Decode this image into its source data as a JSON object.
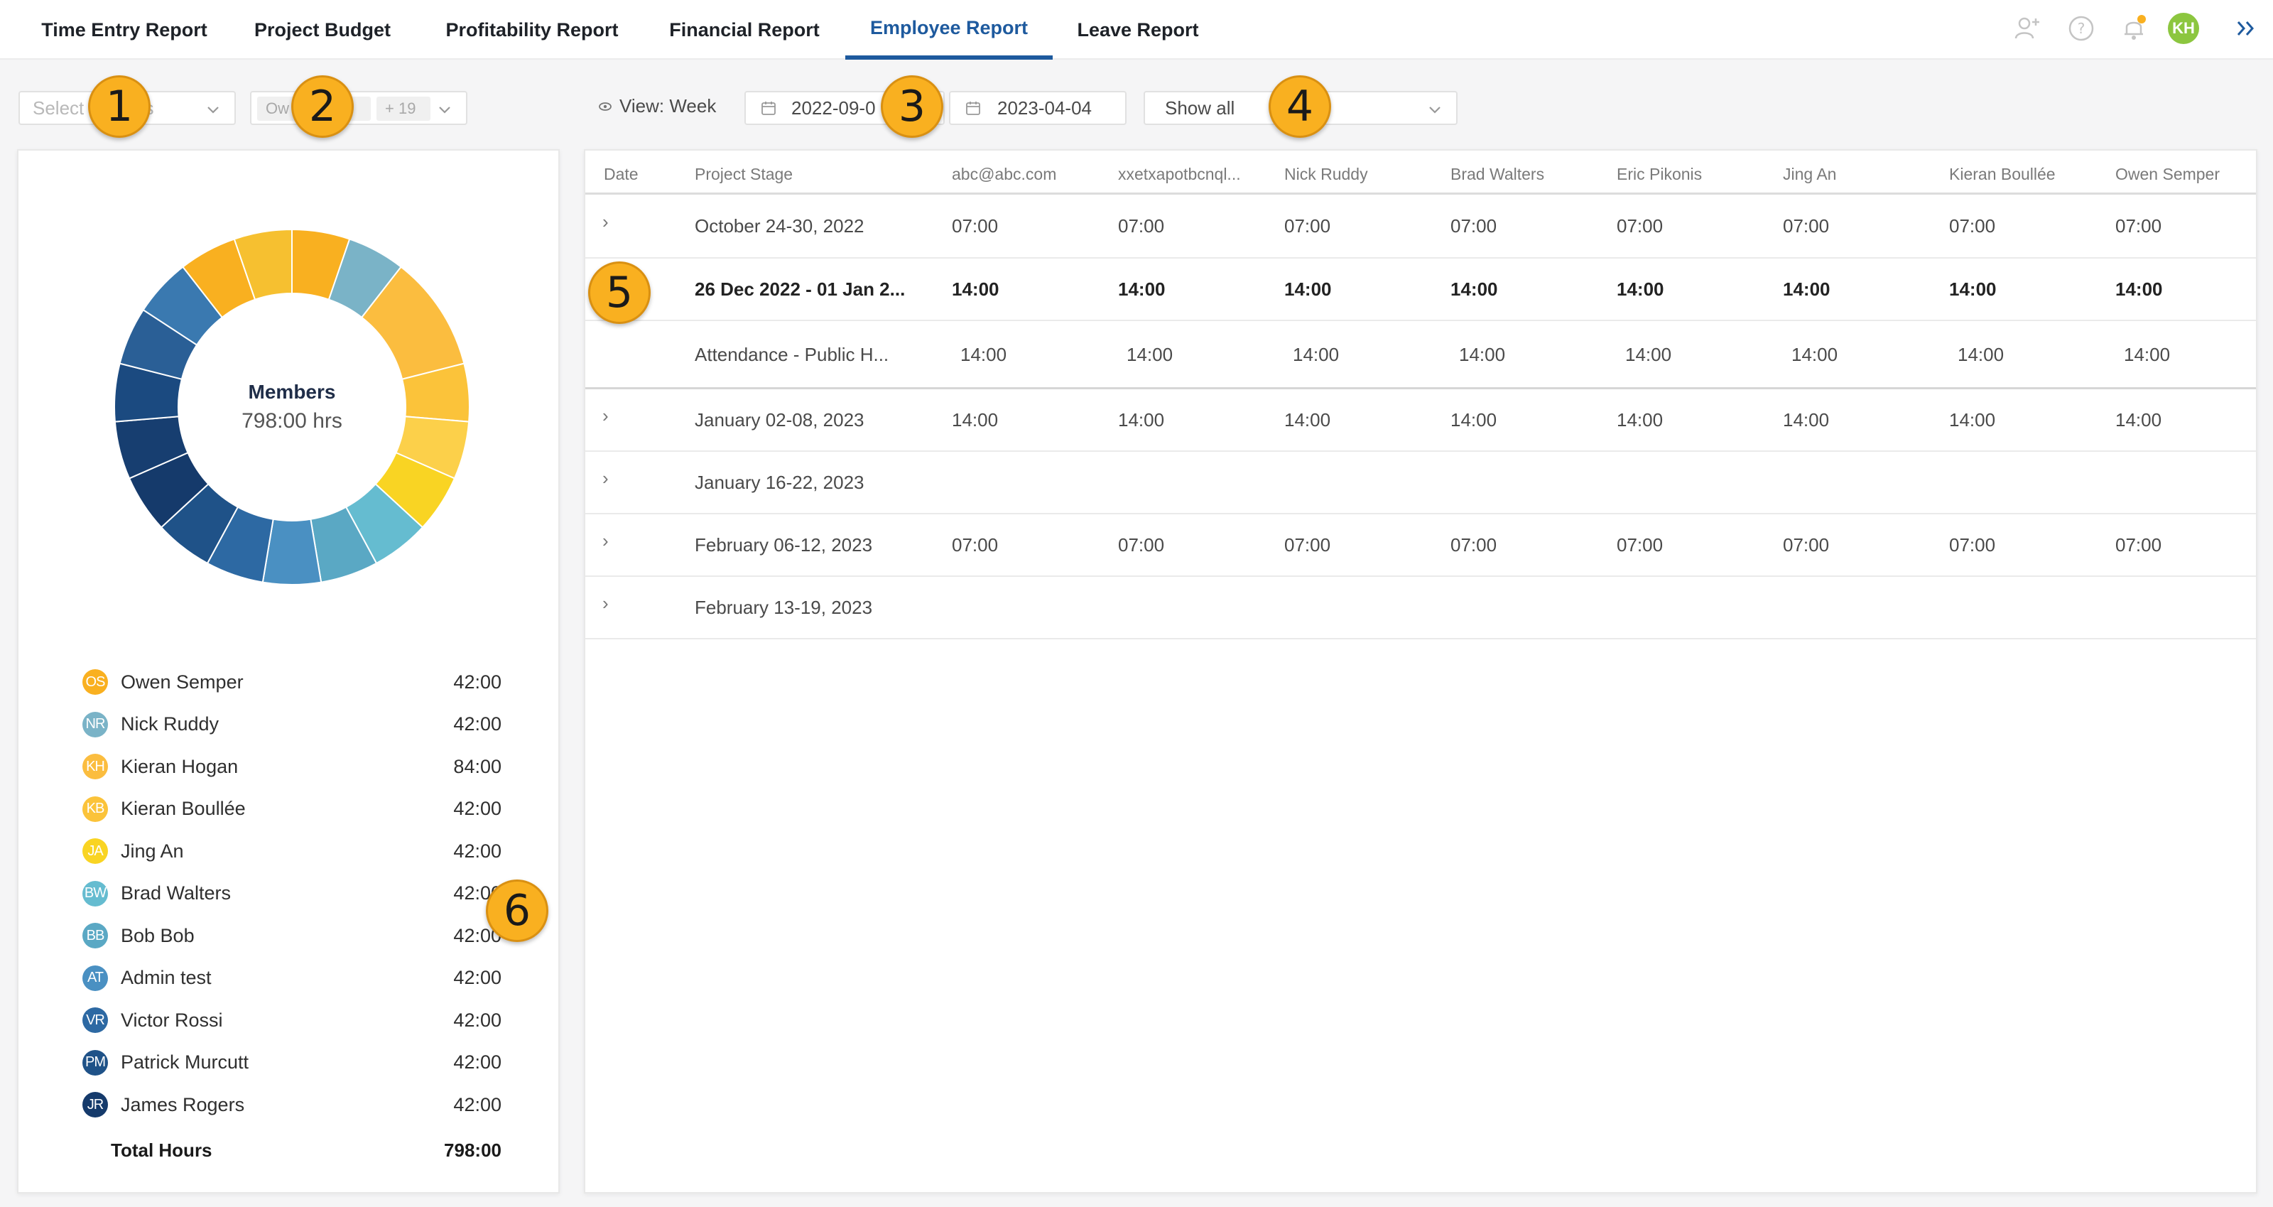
{
  "nav": {
    "tabs": [
      {
        "label": "Time Entry Report"
      },
      {
        "label": "Project Budget"
      },
      {
        "label": "Profitability Report"
      },
      {
        "label": "Financial Report"
      },
      {
        "label": "Employee Report"
      },
      {
        "label": "Leave Report"
      }
    ],
    "active_tab": "Employee Report",
    "user_initials": "KH",
    "colors": {
      "active": "#1e5a9e",
      "avatar": "#8cc63f",
      "notification_dot": "#f9b020"
    }
  },
  "filters": {
    "projects_placeholder": "Select projects",
    "members_chip": "Ow",
    "members_more": "+ 19",
    "view_label": "View: Week",
    "date_start": "2022-09-0",
    "date_end": "2023-04-04",
    "show_all": "Show all"
  },
  "callouts": [
    "1",
    "2",
    "3",
    "4",
    "5",
    "6"
  ],
  "summary": {
    "title": "Members",
    "total_label": "798:00 hrs",
    "members": [
      {
        "initials": "OS",
        "name": "Owen Semper",
        "hours": "42:00",
        "color": "#f9b020"
      },
      {
        "initials": "NR",
        "name": "Nick Ruddy",
        "hours": "42:00",
        "color": "#7ab3c7"
      },
      {
        "initials": "KH",
        "name": "Kieran Hogan",
        "hours": "84:00",
        "color": "#fbbd3f"
      },
      {
        "initials": "KB",
        "name": "Kieran Boullée",
        "hours": "42:00",
        "color": "#fbc33a"
      },
      {
        "initials": "JA",
        "name": "Jing An",
        "hours": "42:00",
        "color": "#f9d423"
      },
      {
        "initials": "BW",
        "name": "Brad Walters",
        "hours": "42:00",
        "color": "#65bcd0"
      },
      {
        "initials": "BB",
        "name": "Bob Bob",
        "hours": "42:00",
        "color": "#5aa8c4"
      },
      {
        "initials": "AT",
        "name": "Admin test",
        "hours": "42:00",
        "color": "#4a90c2"
      },
      {
        "initials": "VR",
        "name": "Victor Rossi",
        "hours": "42:00",
        "color": "#2d69a3"
      },
      {
        "initials": "PM",
        "name": "Patrick Murcutt",
        "hours": "42:00",
        "color": "#1f5288"
      },
      {
        "initials": "JR",
        "name": "James Rogers",
        "hours": "42:00",
        "color": "#153a6b"
      }
    ],
    "total_hours_label": "Total Hours",
    "total_hours": "798:00"
  },
  "table": {
    "columns": [
      "Date",
      "Project Stage",
      "abc@abc.com",
      "xxetxapotbcnql...",
      "Nick Ruddy",
      "Brad Walters",
      "Eric Pikonis",
      "Jing An",
      "Kieran Boullée",
      "Owen Semper"
    ],
    "rows": [
      {
        "expander": "›",
        "stage": "October 24-30, 2022",
        "values": [
          "07:00",
          "07:00",
          "07:00",
          "07:00",
          "07:00",
          "07:00",
          "07:00",
          "07:00"
        ],
        "style": "normal"
      },
      {
        "expander": "",
        "stage": "26 Dec 2022 - 01 Jan 2...",
        "values": [
          "14:00",
          "14:00",
          "14:00",
          "14:00",
          "14:00",
          "14:00",
          "14:00",
          "14:00"
        ],
        "style": "bold"
      },
      {
        "expander": "",
        "stage": "Attendance - Public H...",
        "values": [
          "14:00",
          "14:00",
          "14:00",
          "14:00",
          "14:00",
          "14:00",
          "14:00",
          "14:00"
        ],
        "style": "sub"
      },
      {
        "expander": "›",
        "stage": "January 02-08, 2023",
        "values": [
          "14:00",
          "14:00",
          "14:00",
          "14:00",
          "14:00",
          "14:00",
          "14:00",
          "14:00"
        ],
        "style": "normal"
      },
      {
        "expander": "›",
        "stage": "January 16-22, 2023",
        "values": [],
        "style": "normal"
      },
      {
        "expander": "›",
        "stage": "February 06-12, 2023",
        "values": [
          "07:00",
          "07:00",
          "07:00",
          "07:00",
          "07:00",
          "07:00",
          "07:00",
          "07:00"
        ],
        "style": "normal"
      },
      {
        "expander": "›",
        "stage": "February 13-19, 2023",
        "values": [],
        "style": "normal"
      }
    ]
  }
}
